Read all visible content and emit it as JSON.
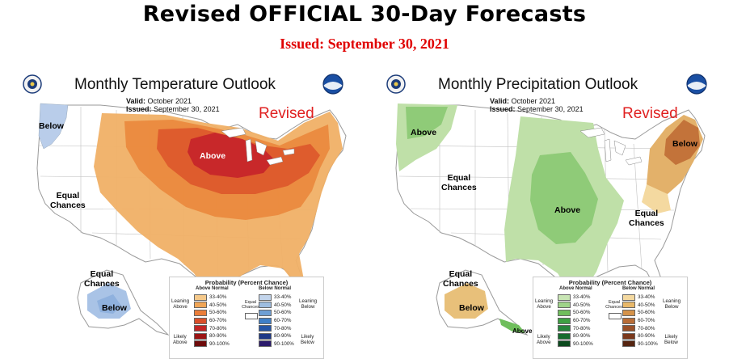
{
  "header": {
    "title": "Revised OFFICIAL 30-Day Forecasts",
    "issued": "Issued: September 30, 2021"
  },
  "temperature": {
    "title": "Monthly Temperature Outlook",
    "valid_label": "Valid:",
    "valid_value": "October 2021",
    "issued_label": "Issued:",
    "issued_value": "September 30, 2021",
    "revised": "Revised",
    "regions": {
      "below": "Below",
      "equal": "Equal\nChances",
      "above": "Above",
      "ak_equal": "Equal\nChances",
      "ak_below": "Below"
    }
  },
  "precipitation": {
    "title": "Monthly Precipitation Outlook",
    "valid_label": "Valid:",
    "valid_value": "October 2021",
    "issued_label": "Issued:",
    "issued_value": "September 30, 2021",
    "revised": "Revised",
    "regions": {
      "above_nw": "Above",
      "equal_w": "Equal\nChances",
      "above": "Above",
      "equal_e": "Equal\nChances",
      "below": "Below",
      "ak_equal": "Equal\nChances",
      "ak_below": "Below",
      "ak_above": "Above"
    }
  },
  "legend_temp": {
    "title": "Probability (Percent Chance)",
    "above_head": "Above Normal",
    "below_head": "Below Normal",
    "leaning_above": "Leaning\nAbove",
    "likely_above": "Likely\nAbove",
    "leaning_below": "Leaning\nBelow",
    "likely_below": "Likely\nBelow",
    "equal": "Equal\nChances",
    "ranges": [
      "33-40%",
      "40-50%",
      "50-60%",
      "60-70%",
      "70-80%",
      "80-90%",
      "90-100%"
    ],
    "above_colors": [
      "#f5c98b",
      "#f0a556",
      "#ea7d3a",
      "#d94f2a",
      "#c22525",
      "#9b1414",
      "#6e0b0b"
    ],
    "below_colors": [
      "#c3d5ec",
      "#9ebde0",
      "#6e9fd4",
      "#3f7fc7",
      "#2555a6",
      "#1d3887",
      "#2b1a6b"
    ]
  },
  "legend_precip": {
    "title": "Probability (Percent Chance)",
    "above_head": "Above Normal",
    "below_head": "Below Normal",
    "leaning_above": "Leaning\nAbove",
    "likely_above": "Likely\nAbove",
    "leaning_below": "Leaning\nBelow",
    "likely_below": "Likely\nBelow",
    "equal": "Equal\nChances",
    "ranges": [
      "33-40%",
      "40-50%",
      "50-60%",
      "60-70%",
      "70-80%",
      "80-90%",
      "90-100%"
    ],
    "above_colors": [
      "#c8e5b4",
      "#9fd389",
      "#6fbe5c",
      "#3ea043",
      "#26843b",
      "#166b2d",
      "#0c4a1e"
    ],
    "below_colors": [
      "#f4d9a0",
      "#e8b86a",
      "#d4924a",
      "#b96d37",
      "#9a5028",
      "#7a381c",
      "#552410"
    ]
  },
  "icons": [
    "commerce-seal-icon",
    "noaa-logo-icon"
  ]
}
